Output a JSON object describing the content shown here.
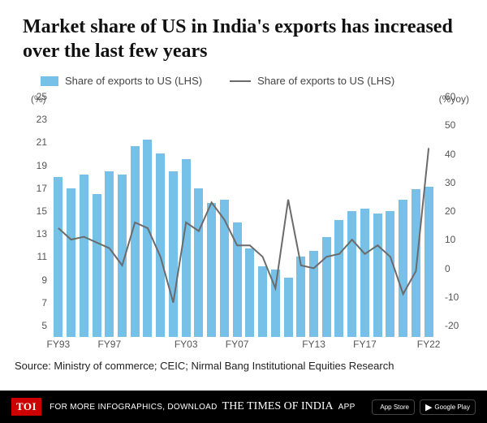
{
  "title": "Market share of US in India's exports has increased over the last few years",
  "legend": {
    "bar_label": "Share of exports to US (LHS)",
    "line_label": "Share of exports to US (LHS)",
    "bar_color": "#77c0e8",
    "line_color": "#6b6b6b"
  },
  "chart": {
    "type": "bar+line",
    "left_axis": {
      "title": "(%)",
      "min": 5,
      "max": 25,
      "ticks": [
        5,
        7,
        9,
        11,
        13,
        15,
        17,
        19,
        21,
        23,
        25
      ]
    },
    "right_axis": {
      "title": "(%yoy)",
      "min": -20,
      "max": 60,
      "ticks": [
        -20,
        -10,
        0,
        10,
        20,
        30,
        40,
        50,
        60
      ]
    },
    "categories": [
      "FY93",
      "FY94",
      "FY95",
      "FY96",
      "FY97",
      "FY98",
      "FY99",
      "FY00",
      "FY01",
      "FY02",
      "FY03",
      "FY04",
      "FY05",
      "FY06",
      "FY07",
      "FY08",
      "FY09",
      "FY10",
      "FY11",
      "FY12",
      "FY13",
      "FY14",
      "FY15",
      "FY16",
      "FY17",
      "FY18",
      "FY19",
      "FY20",
      "FY21",
      "FY22"
    ],
    "x_visible_labels": [
      "FY93",
      "FY97",
      "FY03",
      "FY07",
      "FY13",
      "FY17",
      "FY22"
    ],
    "bar_values": [
      19.0,
      18.0,
      19.2,
      17.5,
      19.5,
      19.2,
      21.7,
      22.2,
      21.0,
      19.5,
      20.5,
      18.0,
      16.7,
      17.0,
      15.0,
      12.7,
      11.2,
      10.9,
      10.2,
      12.0,
      12.5,
      13.7,
      15.2,
      16.0,
      16.2,
      15.8,
      16.0,
      17.0,
      17.9,
      18.1
    ],
    "line_values": [
      18,
      14,
      15,
      13,
      11,
      5,
      20,
      18,
      8,
      -8,
      20,
      17,
      27,
      21,
      12,
      12,
      8,
      -3,
      28,
      5,
      4,
      8,
      9,
      14,
      9,
      12,
      8,
      -5,
      3,
      46
    ],
    "bar_color": "#77c0e8",
    "line_color": "#6b6b6b",
    "line_width": 2,
    "background_color": "#ffffff",
    "font_family": "Arial",
    "tick_font_size": 12
  },
  "source": "Source: Ministry of commerce; CEIC; Nirmal Bang Institutional Equities Research",
  "footer": {
    "badge": "TOI",
    "prefix": "FOR MORE INFOGRAPHICS, DOWNLOAD",
    "brand": "THE TIMES OF INDIA",
    "suffix": "APP",
    "store1": "App Store",
    "store2": "Google Play"
  }
}
